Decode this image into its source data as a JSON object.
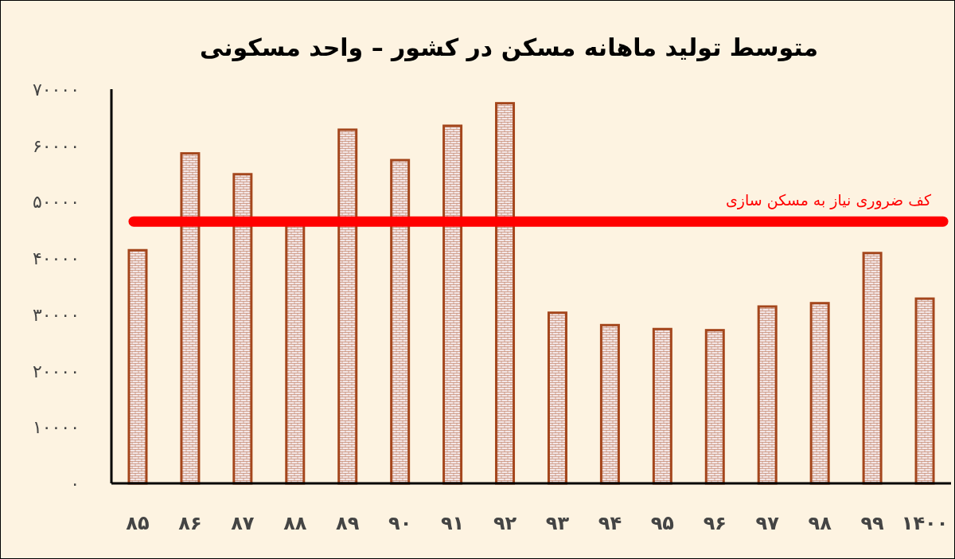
{
  "chart_data": {
    "type": "bar",
    "title": "متوسط تولید ماهانه مسکن در کشور – واحد مسکونی",
    "categories": [
      "۸۵",
      "۸۶",
      "۸۷",
      "۸۸",
      "۸۹",
      "۹۰",
      "۹۱",
      "۹۲",
      "۹۳",
      "۹۴",
      "۹۵",
      "۹۶",
      "۹۷",
      "۹۸",
      "۹۹",
      "۱۴۰۰"
    ],
    "series": [
      {
        "color": "#a4461c",
        "values": [
          41400,
          58600,
          54900,
          46000,
          62800,
          57400,
          63500,
          67500,
          30300,
          28100,
          27400,
          27200,
          31400,
          32000,
          40900,
          32800
        ]
      }
    ],
    "ylim": [
      0,
      70000
    ],
    "yticks": [
      {
        "value": 0,
        "label": "۰"
      },
      {
        "value": 10000,
        "label": "۱۰۰۰۰"
      },
      {
        "value": 20000,
        "label": "۲۰۰۰۰"
      },
      {
        "value": 30000,
        "label": "۳۰۰۰۰"
      },
      {
        "value": 40000,
        "label": "۴۰۰۰۰"
      },
      {
        "value": 50000,
        "label": "۵۰۰۰۰"
      },
      {
        "value": 60000,
        "label": "۶۰۰۰۰"
      },
      {
        "value": 70000,
        "label": "۷۰۰۰۰"
      }
    ],
    "ref_lines": [
      {
        "axis": "y",
        "value": 46500,
        "label": "کف ضروری نیاز به مسکن سازی",
        "color": "#ff0000"
      }
    ],
    "grid": false
  }
}
